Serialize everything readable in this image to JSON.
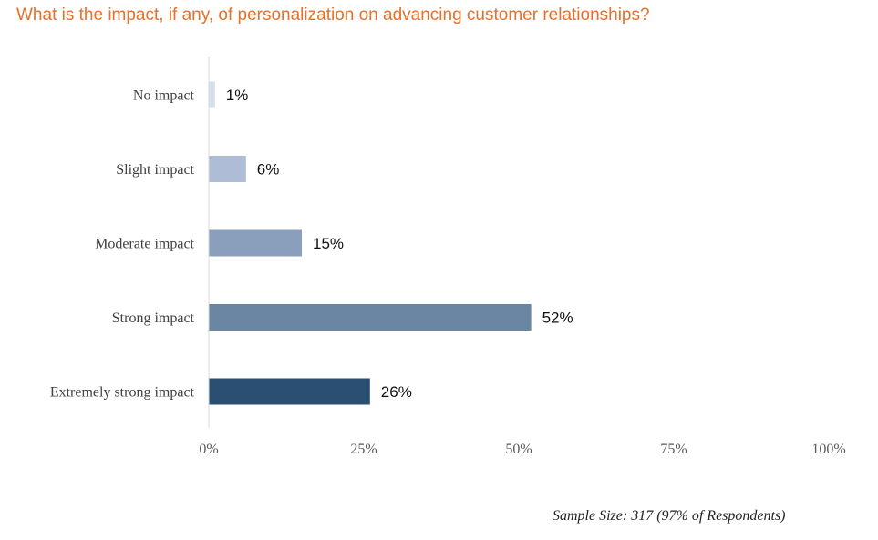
{
  "chart_data": {
    "type": "bar",
    "orientation": "horizontal",
    "title": "What is the impact, if any, of personalization on advancing customer relationships?",
    "categories": [
      "No impact",
      "Slight impact",
      "Moderate impact",
      "Strong impact",
      "Extremely strong impact"
    ],
    "values": [
      1,
      6,
      15,
      52,
      26
    ],
    "value_labels": [
      "1%",
      "6%",
      "15%",
      "52%",
      "26%"
    ],
    "bar_colors": [
      "#d5deec",
      "#aebdd5",
      "#8a9fbb",
      "#6b86a3",
      "#2a4f72"
    ],
    "xlim": [
      0,
      100
    ],
    "ticks": [
      0,
      25,
      50,
      75,
      100
    ],
    "tick_labels": [
      "0%",
      "25%",
      "50%",
      "75%",
      "100%"
    ],
    "xlabel": "",
    "ylabel": "",
    "grid": false,
    "legend": "none"
  },
  "title_color": "#e8702a",
  "footnote": "Sample Size: 317 (97% of Respondents)"
}
